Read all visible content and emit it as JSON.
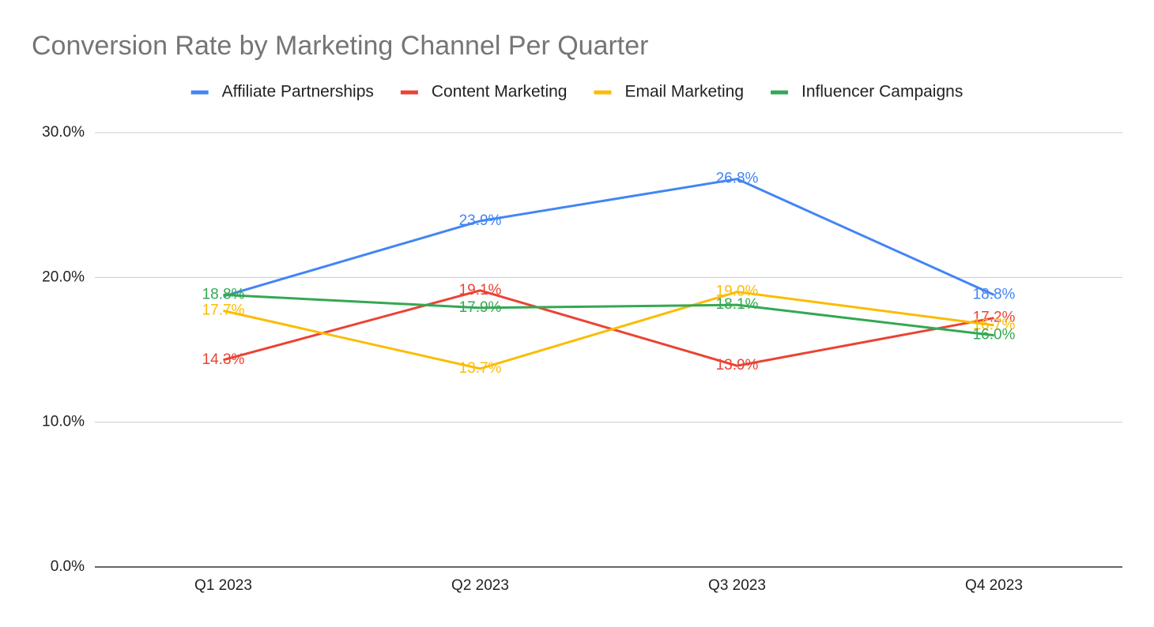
{
  "chart_data": {
    "type": "line",
    "title": "Conversion Rate by Marketing Channel Per Quarter",
    "categories": [
      "Q1 2023",
      "Q2 2023",
      "Q3 2023",
      "Q4 2023"
    ],
    "series": [
      {
        "name": "Affiliate Partnerships",
        "color": "#4285f4",
        "values": [
          18.7,
          23.9,
          26.8,
          18.8
        ],
        "value_labels": [
          null,
          "23.9%",
          "26.8%",
          "18.8%"
        ]
      },
      {
        "name": "Content Marketing",
        "color": "#ea4335",
        "values": [
          14.3,
          19.1,
          13.9,
          17.2
        ],
        "value_labels": [
          "14.3%",
          "19.1%",
          "13.9%",
          "17.2%"
        ]
      },
      {
        "name": "Email Marketing",
        "color": "#fbbc04",
        "values": [
          17.7,
          13.7,
          19.0,
          16.7
        ],
        "value_labels": [
          "17.7%",
          "13.7%",
          "19.0%",
          "16.7%"
        ]
      },
      {
        "name": "Influencer Campaigns",
        "color": "#34a853",
        "values": [
          18.8,
          17.9,
          18.1,
          16.0
        ],
        "value_labels": [
          "18.8%",
          "17.9%",
          "18.1%",
          "16.0%"
        ]
      }
    ],
    "ylim": [
      0,
      30
    ],
    "yticks": [
      {
        "value": 0,
        "label": "0.0%"
      },
      {
        "value": 10,
        "label": "10.0%"
      },
      {
        "value": 20,
        "label": "20.0%"
      },
      {
        "value": 30,
        "label": "30.0%"
      }
    ],
    "grid": true,
    "legend": "top"
  }
}
